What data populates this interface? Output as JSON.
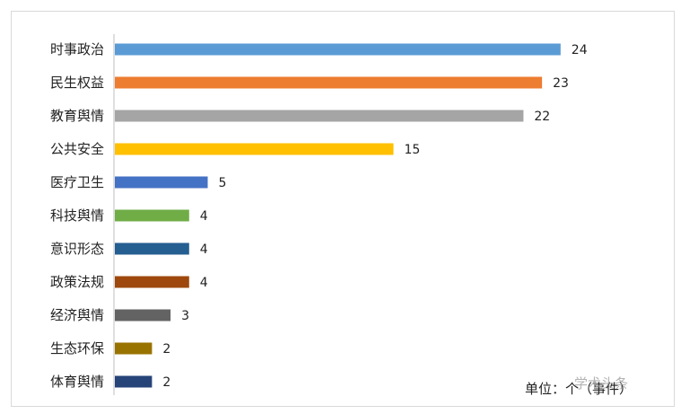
{
  "chart_data": {
    "type": "bar",
    "orientation": "horizontal",
    "categories": [
      "时事政治",
      "民生权益",
      "教育舆情",
      "公共安全",
      "医疗卫生",
      "科技舆情",
      "意识形态",
      "政策法规",
      "经济舆情",
      "生态环保",
      "体育舆情"
    ],
    "values": [
      24,
      23,
      22,
      15,
      5,
      4,
      4,
      4,
      3,
      2,
      2
    ],
    "colors": [
      "#5B9BD5",
      "#ED7D31",
      "#A5A5A5",
      "#FFC000",
      "#4472C4",
      "#70AD47",
      "#255E91",
      "#9E480E",
      "#636363",
      "#997300",
      "#264478"
    ],
    "xlim": [
      0,
      25
    ],
    "grid": false,
    "legend": "none",
    "unit_label": "单位：个（事件）",
    "watermark": "学术头条"
  }
}
